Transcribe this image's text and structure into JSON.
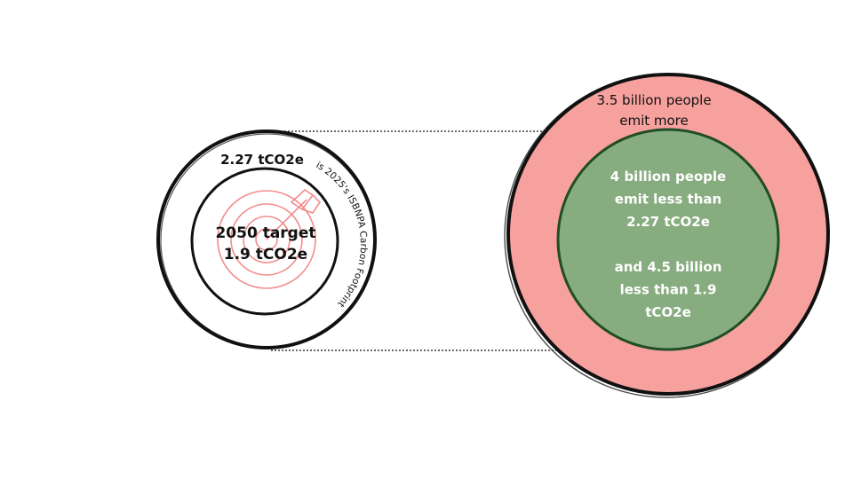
{
  "left_circle": {
    "outer_value": "2.27 tCO2e",
    "arc_text": "is 2025's ISBNPA  Carbon Footprint",
    "target_line1": "2050 target",
    "target_line2": "1.9 tCO2e",
    "icon": "target-with-arrow-icon"
  },
  "right_circle": {
    "outer_line1": "3.5 billion people",
    "outer_line2": "emit more",
    "inner_lines": [
      "4 billion people",
      "emit less than",
      "2.27 tCO2e",
      "",
      "and 4.5 billion",
      "less than 1.9",
      "tCO2e"
    ]
  },
  "colors": {
    "outer_ring_fill": "#f7a19e",
    "inner_fill": "#87ac7f",
    "inner_border": "#1f4d26",
    "stroke": "#111111",
    "target_icon": "#f28c8c",
    "inner_text": "#ffffff",
    "text": "#111111"
  }
}
